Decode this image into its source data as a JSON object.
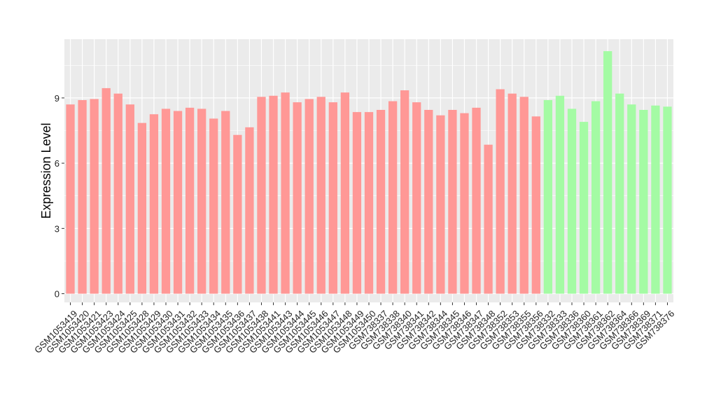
{
  "chart_data": {
    "type": "bar",
    "title": "",
    "xlabel": "",
    "ylabel": "Expression Level",
    "ylim": [
      -0.4,
      11.7
    ],
    "yticks": [
      0,
      3,
      6,
      9
    ],
    "grid": true,
    "categories": [
      "GSM1053419",
      "GSM1053420",
      "GSM1053421",
      "GSM1053423",
      "GSM1053424",
      "GSM1053425",
      "GSM1053428",
      "GSM1053429",
      "GSM1053430",
      "GSM1053431",
      "GSM1053432",
      "GSM1053433",
      "GSM1053434",
      "GSM1053435",
      "GSM1053436",
      "GSM1053437",
      "GSM1053438",
      "GSM1053441",
      "GSM1053443",
      "GSM1053444",
      "GSM1053445",
      "GSM1053446",
      "GSM1053447",
      "GSM1053448",
      "GSM1053449",
      "GSM1053450",
      "GSM738337",
      "GSM738338",
      "GSM738340",
      "GSM738341",
      "GSM738342",
      "GSM738344",
      "GSM738345",
      "GSM738346",
      "GSM738347",
      "GSM738348",
      "GSM738352",
      "GSM738353",
      "GSM738355",
      "GSM738356",
      "GSM738332",
      "GSM738333",
      "GSM738336",
      "GSM738360",
      "GSM738361",
      "GSM738362",
      "GSM738364",
      "GSM738366",
      "GSM738369",
      "GSM738371",
      "GSM738376"
    ],
    "values": [
      8.7,
      8.9,
      8.95,
      9.45,
      9.2,
      8.7,
      7.85,
      8.25,
      8.5,
      8.4,
      8.55,
      8.5,
      8.05,
      8.4,
      7.3,
      7.65,
      9.05,
      9.1,
      9.25,
      8.8,
      8.95,
      9.05,
      8.8,
      9.25,
      8.35,
      8.35,
      8.45,
      8.85,
      9.35,
      8.8,
      8.45,
      8.2,
      8.45,
      8.3,
      8.55,
      6.85,
      9.4,
      9.2,
      9.05,
      8.15,
      8.9,
      9.1,
      8.5,
      7.9,
      8.85,
      11.15,
      9.2,
      8.7,
      8.45,
      8.65,
      8.6
    ],
    "groups": [
      "a",
      "a",
      "a",
      "a",
      "a",
      "a",
      "a",
      "a",
      "a",
      "a",
      "a",
      "a",
      "a",
      "a",
      "a",
      "a",
      "a",
      "a",
      "a",
      "a",
      "a",
      "a",
      "a",
      "a",
      "a",
      "a",
      "a",
      "a",
      "a",
      "a",
      "a",
      "a",
      "a",
      "a",
      "a",
      "a",
      "a",
      "a",
      "a",
      "a",
      "b",
      "b",
      "b",
      "b",
      "b",
      "b",
      "b",
      "b",
      "b",
      "b",
      "b"
    ],
    "colors": {
      "a": "#ff9896",
      "b": "#a4fba4"
    },
    "panel_background": "#ebebeb",
    "gridline_color": "#ffffff"
  }
}
